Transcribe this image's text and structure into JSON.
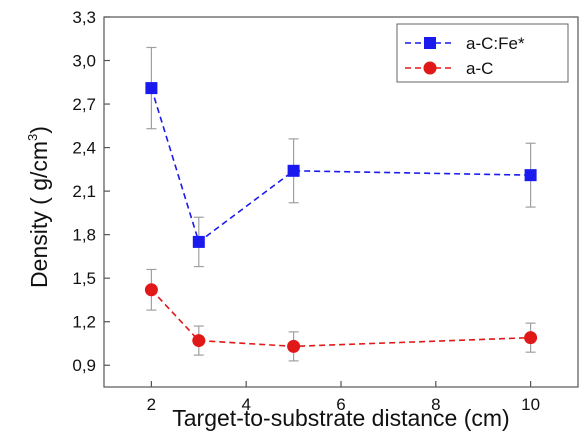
{
  "chart_data": {
    "type": "line",
    "title": "",
    "xlabel": "Target-to-substrate distance (cm)",
    "ylabel": "Density ( g/cm",
    "ylabel_sup": "3",
    "ylabel_tail": ")",
    "xlim": [
      1,
      11
    ],
    "ylim": [
      0.75,
      3.3
    ],
    "x_ticks": [
      2,
      4,
      6,
      8,
      10
    ],
    "x_tick_labels": [
      "2",
      "4",
      "6",
      "8",
      "10"
    ],
    "y_ticks": [
      0.9,
      1.2,
      1.5,
      1.8,
      2.1,
      2.4,
      2.7,
      3.0,
      3.3
    ],
    "y_tick_labels": [
      "0,9",
      "1,2",
      "1,5",
      "1,8",
      "2,1",
      "2,4",
      "2,7",
      "3,0",
      "3,3"
    ],
    "grid": false,
    "legend_position": "top-right",
    "series": [
      {
        "name": "a-C:Fe*",
        "color": "#1a1aee",
        "marker": "square",
        "line_style": "dashed",
        "x": [
          2,
          3,
          5,
          10
        ],
        "y": [
          2.81,
          1.75,
          2.24,
          2.21
        ],
        "error": [
          0.28,
          0.17,
          0.22,
          0.22
        ]
      },
      {
        "name": "a-C",
        "color": "#e01818",
        "marker": "circle",
        "line_style": "dashed",
        "x": [
          2,
          3,
          5,
          10
        ],
        "y": [
          1.42,
          1.07,
          1.03,
          1.09
        ],
        "error": [
          0.14,
          0.1,
          0.1,
          0.1
        ]
      }
    ]
  }
}
